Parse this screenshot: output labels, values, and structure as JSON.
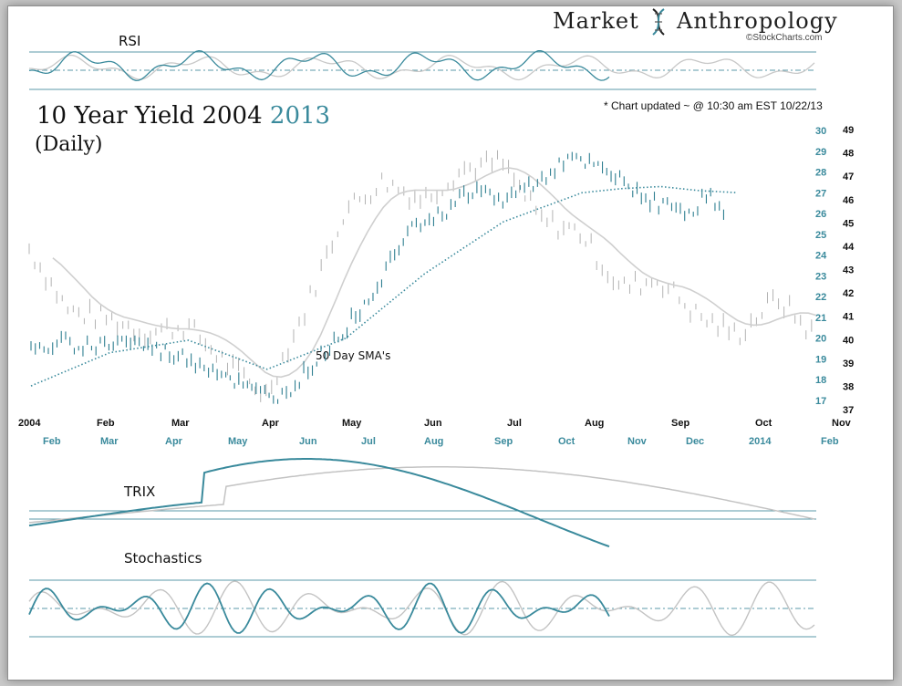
{
  "brand": {
    "name_left": "Market",
    "name_right": "Anthropology",
    "watermark": "©StockCharts.com"
  },
  "note": "* Chart updated ~ @ 10:30 am EST 10/22/13",
  "title": {
    "main": "10 Year Yield",
    "year_a": "2004",
    "year_b": "2013",
    "sub": "(Daily)"
  },
  "panels": {
    "rsi_label": "RSI",
    "trix_label": "TRIX",
    "stoch_label": "Stochastics",
    "sma_label": "50 Day SMA's"
  },
  "colors": {
    "series_2013": "#3a8a9c",
    "series_2004": "#c3c3c3",
    "axis_right_inner": "#3a8a9c",
    "axis_right_outer": "#111111"
  },
  "chart_data": {
    "type": "line",
    "x_axis_top": [
      "2004",
      "Feb",
      "Mar",
      "Apr",
      "May",
      "Jun",
      "Jul",
      "Aug",
      "Sep",
      "Oct",
      "Nov"
    ],
    "x_axis_bottom": [
      "Feb",
      "Mar",
      "Apr",
      "May",
      "Jun",
      "Jul",
      "Aug",
      "Sep",
      "Oct",
      "Nov",
      "Dec",
      "2014",
      "Feb"
    ],
    "y_axis_inner": {
      "label": "2013",
      "ticks": [
        17,
        18,
        19,
        20,
        21,
        22,
        23,
        24,
        25,
        26,
        27,
        28,
        29,
        30
      ]
    },
    "y_axis_outer": {
      "label": "2004",
      "ticks": [
        37,
        38,
        39,
        40,
        41,
        42,
        43,
        44,
        45,
        46,
        47,
        48,
        49
      ]
    },
    "series": [
      {
        "name": "2013",
        "axis": "inner",
        "x_month": [
          1.0,
          1.4,
          1.8,
          2.2,
          2.6,
          3.0,
          3.4,
          3.8,
          4.2,
          4.6,
          5.0,
          5.4,
          5.8,
          6.2,
          6.6,
          7.0,
          7.4,
          7.8,
          8.2,
          8.6,
          9.0,
          9.4,
          9.6,
          9.8
        ],
        "values": [
          19.3,
          19.8,
          19.6,
          19.9,
          19.4,
          19.0,
          18.4,
          17.4,
          17.2,
          18.8,
          20.5,
          22.5,
          25.5,
          25.9,
          27.2,
          26.6,
          27.5,
          28.6,
          28.2,
          27.3,
          26.4,
          26.1,
          27.0,
          25.8
        ]
      },
      {
        "name": "2004",
        "axis": "outer",
        "x_month": [
          0.0,
          0.5,
          1.0,
          1.5,
          2.0,
          2.5,
          3.0,
          3.5,
          4.0,
          4.5,
          5.0,
          5.5,
          6.0,
          6.5,
          7.0,
          7.5,
          8.0,
          8.5,
          9.0,
          9.5,
          10.0
        ],
        "values": [
          43.9,
          41.2,
          40.9,
          40.3,
          40.6,
          39.0,
          37.6,
          41.2,
          45.5,
          46.8,
          46.0,
          47.3,
          47.6,
          45.1,
          44.6,
          42.2,
          42.6,
          41.0,
          40.2,
          41.8,
          40.1
        ]
      },
      {
        "name": "50 Day SMA's",
        "axis": "inner",
        "x_month": [
          1.0,
          2.0,
          3.0,
          4.0,
          5.0,
          6.0,
          7.0,
          8.0,
          8.5,
          9.0,
          9.5,
          10.0
        ],
        "values": [
          17.7,
          19.3,
          19.9,
          18.5,
          20.0,
          23.1,
          25.6,
          27.0,
          27.2,
          27.3,
          27.1,
          27.0
        ]
      }
    ]
  }
}
